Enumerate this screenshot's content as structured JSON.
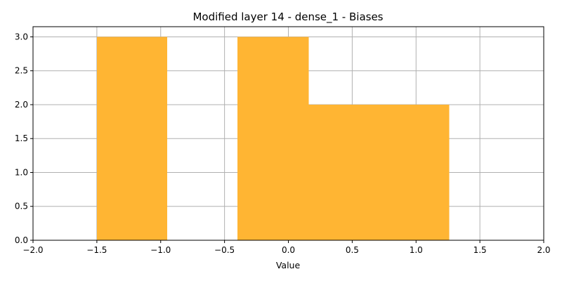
{
  "chart_data": {
    "type": "bar",
    "title": "Modified layer 14 - dense_1 - Biases",
    "xlabel": "Value",
    "ylabel": "",
    "xlim": [
      -2.0,
      2.0
    ],
    "ylim": [
      0,
      3.15
    ],
    "xticks": [
      -2.0,
      -1.5,
      -1.0,
      -0.5,
      0.0,
      0.5,
      1.0,
      1.5,
      2.0
    ],
    "xtick_labels": [
      "−2.0",
      "−1.5",
      "−1.0",
      "−0.5",
      "0.0",
      "0.5",
      "1.0",
      "1.5",
      "2.0"
    ],
    "yticks": [
      0.0,
      0.5,
      1.0,
      1.5,
      2.0,
      2.5,
      3.0
    ],
    "ytick_labels": [
      "0.0",
      "0.5",
      "1.0",
      "1.5",
      "2.0",
      "2.5",
      "3.0"
    ],
    "grid": true,
    "bar_color": "#FFB533",
    "bins": [
      {
        "x0": -1.5,
        "x1": -0.95,
        "count": 3
      },
      {
        "x0": -0.95,
        "x1": -0.4,
        "count": 0
      },
      {
        "x0": -0.4,
        "x1": 0.16,
        "count": 3
      },
      {
        "x0": 0.16,
        "x1": 0.71,
        "count": 2
      },
      {
        "x0": 0.71,
        "x1": 1.26,
        "count": 2
      }
    ]
  }
}
